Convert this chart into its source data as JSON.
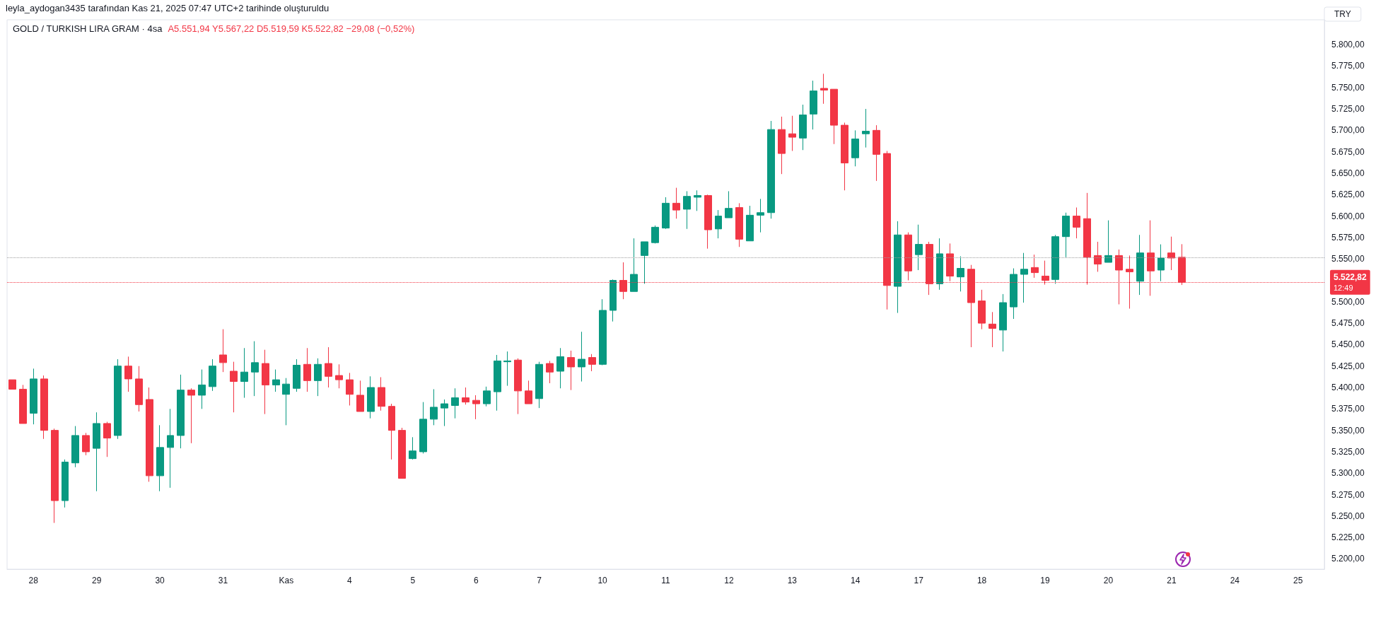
{
  "chart_data": {
    "type": "candlestick",
    "title": "GOLD / TURKISH LIRA GRAM · 4sa",
    "subtitle": "A5.551,94 Y5.567,22 D5.519,59 K5.522,82 −29,08 (−0,52%)",
    "ylabel": "TRY",
    "annotations": [
      "leyla_aydogan3435 tarafından Kas 21, 2025 07:47 UTC+2 tarihinde oluşturuldu",
      "12:49"
    ],
    "categories": [
      null,
      null,
      "28",
      null,
      null,
      null,
      null,
      null,
      "29",
      null,
      null,
      null,
      null,
      null,
      "30",
      null,
      null,
      null,
      null,
      null,
      "31",
      null,
      null,
      null,
      null,
      null,
      "Kas",
      null,
      null,
      null,
      null,
      null,
      "4",
      null,
      null,
      null,
      null,
      null,
      "5",
      null,
      null,
      null,
      null,
      null,
      "6",
      null,
      null,
      null,
      null,
      null,
      "7",
      null,
      null,
      null,
      null,
      null,
      "10",
      null,
      null,
      null,
      null,
      null,
      "11",
      null,
      null,
      null,
      null,
      null,
      "12",
      null,
      null,
      null,
      null,
      null,
      "13",
      null,
      null,
      null,
      null,
      null,
      "14",
      null,
      null,
      null,
      null,
      null,
      "17",
      null,
      null,
      null,
      null,
      null,
      "18",
      null,
      null,
      null,
      null,
      null,
      "19",
      null,
      null,
      null,
      null,
      null,
      "20",
      null,
      null,
      null,
      null,
      null,
      "21",
      null,
      null,
      null,
      null,
      null,
      "24",
      null,
      null,
      null,
      null,
      null,
      "25",
      null,
      null
    ],
    "ohlc": [
      [
        5409,
        5409,
        5398,
        5398
      ],
      [
        5398,
        5403,
        5358,
        5358
      ],
      [
        5370,
        5422,
        5357,
        5410
      ],
      [
        5410,
        5414,
        5340,
        5350
      ],
      [
        5350,
        5352,
        5242,
        5268
      ],
      [
        5268,
        5316,
        5260,
        5313
      ],
      [
        5312,
        5355,
        5307,
        5344
      ],
      [
        5344,
        5347,
        5321,
        5325
      ],
      [
        5329,
        5371,
        5279,
        5358
      ],
      [
        5358,
        5360,
        5319,
        5341
      ],
      [
        5344,
        5433,
        5340,
        5425
      ],
      [
        5425,
        5436,
        5395,
        5410
      ],
      [
        5410,
        5425,
        5372,
        5380
      ],
      [
        5386,
        5400,
        5290,
        5297
      ],
      [
        5297,
        5356,
        5279,
        5330
      ],
      [
        5330,
        5375,
        5283,
        5344
      ],
      [
        5344,
        5415,
        5329,
        5397
      ],
      [
        5397,
        5399,
        5335,
        5391
      ],
      [
        5391,
        5421,
        5375,
        5403
      ],
      [
        5401,
        5433,
        5396,
        5425
      ],
      [
        5438,
        5468,
        5418,
        5429
      ],
      [
        5419,
        5430,
        5371,
        5407
      ],
      [
        5407,
        5446,
        5388,
        5418
      ],
      [
        5418,
        5454,
        5390,
        5429
      ],
      [
        5428,
        5444,
        5369,
        5403
      ],
      [
        5403,
        5421,
        5395,
        5409
      ],
      [
        5392,
        5411,
        5356,
        5404
      ],
      [
        5399,
        5433,
        5395,
        5426
      ],
      [
        5427,
        5446,
        5395,
        5408
      ],
      [
        5408,
        5434,
        5390,
        5427
      ],
      [
        5428,
        5447,
        5400,
        5413
      ],
      [
        5414,
        5427,
        5399,
        5409
      ],
      [
        5409,
        5417,
        5379,
        5392
      ],
      [
        5391,
        5408,
        5372,
        5372
      ],
      [
        5372,
        5413,
        5364,
        5400
      ],
      [
        5400,
        5412,
        5373,
        5378
      ],
      [
        5378,
        5381,
        5316,
        5350
      ],
      [
        5350,
        5353,
        5294,
        5294
      ],
      [
        5317,
        5342,
        5316,
        5326
      ],
      [
        5325,
        5383,
        5323,
        5363
      ],
      [
        5363,
        5398,
        5356,
        5377
      ],
      [
        5376,
        5386,
        5355,
        5381
      ],
      [
        5379,
        5399,
        5364,
        5388
      ],
      [
        5388,
        5400,
        5380,
        5383
      ],
      [
        5385,
        5391,
        5363,
        5381
      ],
      [
        5381,
        5401,
        5378,
        5396
      ],
      [
        5395,
        5438,
        5373,
        5431
      ],
      [
        5430,
        5442,
        5402,
        5431
      ],
      [
        5432,
        5434,
        5369,
        5396
      ],
      [
        5396,
        5408,
        5381,
        5381
      ],
      [
        5387,
        5430,
        5376,
        5427
      ],
      [
        5428,
        5431,
        5405,
        5418
      ],
      [
        5419,
        5446,
        5399,
        5436
      ],
      [
        5435,
        5443,
        5397,
        5424
      ],
      [
        5424,
        5465,
        5407,
        5433
      ],
      [
        5435,
        5439,
        5419,
        5427
      ],
      [
        5427,
        5503,
        5426,
        5490
      ],
      [
        5490,
        5526,
        5477,
        5525
      ],
      [
        5525,
        5546,
        5503,
        5512
      ],
      [
        5512,
        5574,
        5512,
        5532
      ],
      [
        5554,
        5570,
        5521,
        5570
      ],
      [
        5569,
        5589,
        5568,
        5587
      ],
      [
        5586,
        5622,
        5585,
        5615
      ],
      [
        5615,
        5633,
        5597,
        5607
      ],
      [
        5608,
        5629,
        5585,
        5623
      ],
      [
        5622,
        5630,
        5606,
        5624
      ],
      [
        5624,
        5625,
        5562,
        5584
      ],
      [
        5585,
        5607,
        5574,
        5600
      ],
      [
        5598,
        5629,
        5598,
        5609
      ],
      [
        5610,
        5615,
        5564,
        5573
      ],
      [
        5571,
        5612,
        5571,
        5601
      ],
      [
        5601,
        5620,
        5581,
        5604
      ],
      [
        5604,
        5711,
        5597,
        5701
      ],
      [
        5701,
        5716,
        5649,
        5673
      ],
      [
        5696,
        5717,
        5676,
        5692
      ],
      [
        5691,
        5730,
        5677,
        5718
      ],
      [
        5719,
        5758,
        5701,
        5746
      ],
      [
        5749,
        5766,
        5731,
        5747
      ],
      [
        5748,
        5748,
        5684,
        5706
      ],
      [
        5706,
        5709,
        5630,
        5662
      ],
      [
        5668,
        5700,
        5658,
        5690
      ],
      [
        5696,
        5725,
        5680,
        5699
      ],
      [
        5700,
        5706,
        5641,
        5672
      ],
      [
        5673,
        5676,
        5491,
        5519
      ],
      [
        5518,
        5594,
        5487,
        5578
      ],
      [
        5578,
        5581,
        5525,
        5536
      ],
      [
        5555,
        5590,
        5537,
        5567
      ],
      [
        5567,
        5570,
        5508,
        5521
      ],
      [
        5521,
        5574,
        5514,
        5556
      ],
      [
        5556,
        5568,
        5524,
        5530
      ],
      [
        5529,
        5553,
        5512,
        5539
      ],
      [
        5538,
        5543,
        5447,
        5499
      ],
      [
        5501,
        5514,
        5468,
        5475
      ],
      [
        5474,
        5488,
        5447,
        5469
      ],
      [
        5467,
        5509,
        5442,
        5499
      ],
      [
        5494,
        5539,
        5480,
        5532
      ],
      [
        5532,
        5557,
        5499,
        5538
      ],
      [
        5540,
        5555,
        5528,
        5534
      ],
      [
        5530,
        5548,
        5520,
        5525
      ],
      [
        5526,
        5578,
        5521,
        5576
      ],
      [
        5576,
        5604,
        5552,
        5600
      ],
      [
        5600,
        5610,
        5574,
        5587
      ],
      [
        5597,
        5627,
        5520,
        5552
      ],
      [
        5554,
        5570,
        5535,
        5544
      ],
      [
        5546,
        5595,
        5546,
        5554
      ],
      [
        5554,
        5561,
        5497,
        5537
      ],
      [
        5538,
        5554,
        5492,
        5535
      ],
      [
        5524,
        5578,
        5508,
        5557
      ],
      [
        5557,
        5595,
        5507,
        5536
      ],
      [
        5537,
        5567,
        5524,
        5551
      ],
      [
        5557,
        5576,
        5537,
        5551
      ],
      [
        5551.94,
        5567.22,
        5519.59,
        5522.82
      ],
      null,
      null,
      null,
      null,
      null,
      null,
      null,
      null,
      null,
      null,
      null,
      null,
      null
    ],
    "colors": [
      "#f23645",
      "#f23645",
      "#089981",
      "#f23645",
      "#f23645",
      "#089981",
      "#089981",
      "#f23645",
      "#089981",
      "#f23645",
      "#089981",
      "#f23645",
      "#f23645",
      "#f23645",
      "#089981",
      "#089981",
      "#089981",
      "#f23645",
      "#089981",
      "#089981",
      "#f23645",
      "#f23645",
      "#089981",
      "#089981",
      "#f23645",
      "#089981",
      "#089981",
      "#089981",
      "#f23645",
      "#089981",
      "#f23645",
      "#f23645",
      "#f23645",
      "#f23645",
      "#089981",
      "#f23645",
      "#f23645",
      "#f23645",
      "#089981",
      "#089981",
      "#089981",
      "#089981",
      "#089981",
      "#f23645",
      "#f23645",
      "#089981",
      "#089981",
      "#089981",
      "#f23645",
      "#f23645",
      "#089981",
      "#f23645",
      "#089981",
      "#f23645",
      "#089981",
      "#f23645",
      "#089981",
      "#089981",
      "#f23645",
      "#089981",
      "#089981",
      "#089981",
      "#089981",
      "#f23645",
      "#089981",
      "#089981",
      "#f23645",
      "#089981",
      "#089981",
      "#f23645",
      "#089981",
      "#089981",
      "#089981",
      "#f23645",
      "#f23645",
      "#089981",
      "#089981",
      "#f23645",
      "#f23645",
      "#f23645",
      "#089981",
      "#089981",
      "#f23645",
      "#f23645",
      "#089981",
      "#f23645",
      "#089981",
      "#f23645",
      "#089981",
      "#f23645",
      "#089981",
      "#f23645",
      "#f23645",
      "#f23645",
      "#089981",
      "#089981",
      "#089981",
      "#f23645",
      "#f23645",
      "#089981",
      "#089981",
      "#f23645",
      "#f23645",
      "#f23645",
      "#089981",
      "#f23645",
      "#f23645",
      "#089981",
      "#f23645",
      "#089981",
      "#f23645",
      "#f23645",
      null,
      null,
      null,
      null,
      null,
      null,
      null,
      null,
      null,
      null,
      null,
      null,
      null
    ],
    "ylim": [
      5188,
      5829
    ],
    "yticks": [
      {
        "value": 5200,
        "label": "5.200,00"
      },
      {
        "value": 5225,
        "label": "5.225,00"
      },
      {
        "value": 5250,
        "label": "5.250,00"
      },
      {
        "value": 5275,
        "label": "5.275,00"
      },
      {
        "value": 5300,
        "label": "5.300,00"
      },
      {
        "value": 5325,
        "label": "5.325,00"
      },
      {
        "value": 5350,
        "label": "5.350,00"
      },
      {
        "value": 5375,
        "label": "5.375,00"
      },
      {
        "value": 5400,
        "label": "5.400,00"
      },
      {
        "value": 5425,
        "label": "5.425,00"
      },
      {
        "value": 5450,
        "label": "5.450,00"
      },
      {
        "value": 5475,
        "label": "5.475,00"
      },
      {
        "value": 5500,
        "label": "5.500,00"
      },
      {
        "value": 5550,
        "label": "5.550,00"
      },
      {
        "value": 5575,
        "label": "5.575,00"
      },
      {
        "value": 5600,
        "label": "5.600,00"
      },
      {
        "value": 5625,
        "label": "5.625,00"
      },
      {
        "value": 5650,
        "label": "5.650,00"
      },
      {
        "value": 5675,
        "label": "5.675,00"
      },
      {
        "value": 5700,
        "label": "5.700,00"
      },
      {
        "value": 5725,
        "label": "5.725,00"
      },
      {
        "value": 5750,
        "label": "5.750,00"
      },
      {
        "value": 5775,
        "label": "5.775,00"
      },
      {
        "value": 5800,
        "label": "5.800,00"
      }
    ],
    "ref_lines": [
      {
        "axis": "y",
        "value": 5551.94,
        "color": "#9e9e9e",
        "line_style": "dotted"
      },
      {
        "axis": "y",
        "value": 5522.82,
        "label": "5.522,82",
        "color": "#f23645",
        "line_style": "dotted"
      }
    ],
    "grid": false
  }
}
